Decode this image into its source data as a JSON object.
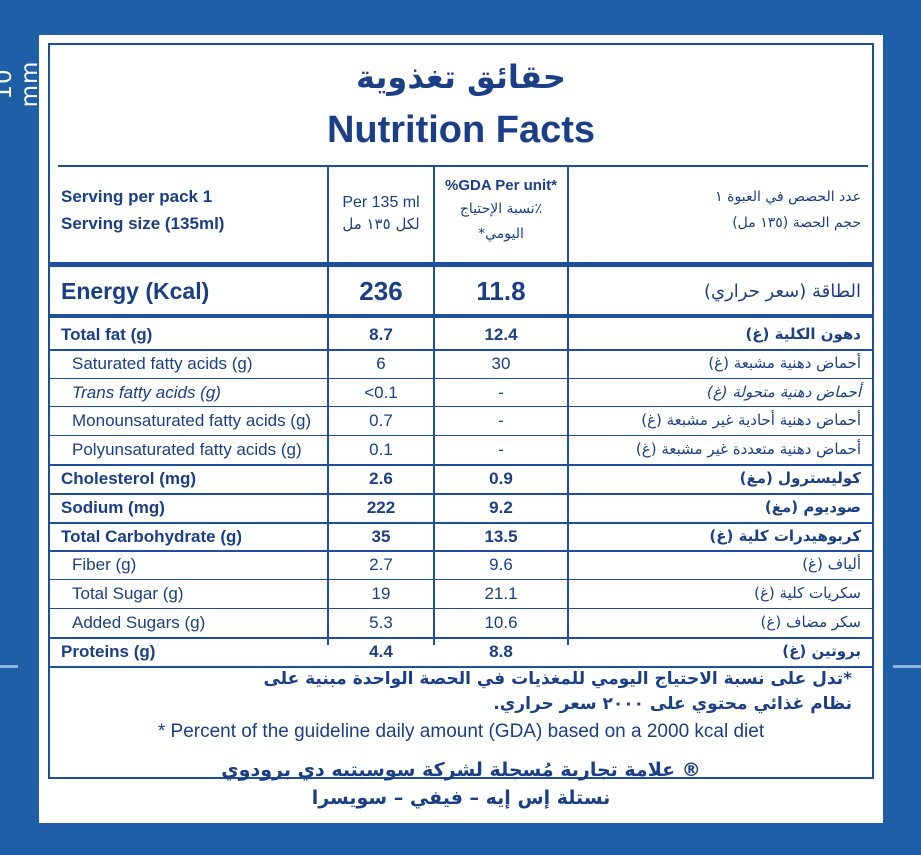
{
  "side_label": "10 mm",
  "title_ar": "حقائق تغذوية",
  "title_en": "Nutrition Facts",
  "header": {
    "serving_en_1": "Serving per pack 1",
    "serving_en_2": "Serving size (135ml)",
    "per_1": "Per 135 ml",
    "per_2": "لكل ١٣٥ مل",
    "gda_1": "%GDA Per unit*",
    "gda_2": "٪نسبة الإحتياج",
    "gda_3": "اليومي*",
    "serving_ar_1": "عدد الحصص في العبوة ١",
    "serving_ar_2": "حجم الحصة (١٣٥ مل)"
  },
  "energy": {
    "en": "Energy (Kcal)",
    "value": "236",
    "gda": "11.8",
    "ar": "الطاقة (سعر حراري)"
  },
  "rows": [
    {
      "en": "Total fat (g)",
      "value": "8.7",
      "gda": "12.4",
      "ar": "دهون الكلية (غ)",
      "bold": true,
      "indent": false,
      "italic": false
    },
    {
      "en": "Saturated fatty acids (g)",
      "value": "6",
      "gda": "30",
      "ar": "أحماض دهنية مشبعة (غ)",
      "bold": false,
      "indent": true,
      "italic": false
    },
    {
      "en": "Trans fatty acids (g)",
      "value": "<0.1",
      "gda": "-",
      "ar": "أحماض دهنية متحولة (غ)",
      "bold": false,
      "indent": true,
      "italic": true
    },
    {
      "en": "Monounsaturated fatty acids (g)",
      "value": "0.7",
      "gda": "-",
      "ar": "أحماض دهنية أحادية غير مشبعة (غ)",
      "bold": false,
      "indent": true,
      "italic": false
    },
    {
      "en": "Polyunsaturated fatty acids (g)",
      "value": "0.1",
      "gda": "-",
      "ar": "أحماض دهنية متعددة غير مشبعة (غ)",
      "bold": false,
      "indent": true,
      "italic": false
    },
    {
      "en": "Cholesterol (mg)",
      "value": "2.6",
      "gda": "0.9",
      "ar": "كوليسترول (مغ)",
      "bold": true,
      "indent": false,
      "italic": false
    },
    {
      "en": "Sodium (mg)",
      "value": "222",
      "gda": "9.2",
      "ar": "صوديوم (مغ)",
      "bold": true,
      "indent": false,
      "italic": false
    },
    {
      "en": "Total Carbohydrate (g)",
      "value": "35",
      "gda": "13.5",
      "ar": "كربوهيدرات كلية (غ)",
      "bold": true,
      "indent": false,
      "italic": false
    },
    {
      "en": "Fiber (g)",
      "value": "2.7",
      "gda": "9.6",
      "ar": "ألياف (غ)",
      "bold": false,
      "indent": true,
      "italic": false
    },
    {
      "en": "Total Sugar (g)",
      "value": "19",
      "gda": "21.1",
      "ar": "سكريات كلية (غ)",
      "bold": false,
      "indent": true,
      "italic": false
    },
    {
      "en": "Added Sugars (g)",
      "value": "5.3",
      "gda": "10.6",
      "ar": "سكر مضاف (غ)",
      "bold": false,
      "indent": true,
      "italic": false
    },
    {
      "en": "Proteins (g)",
      "value": "4.4",
      "gda": "8.8",
      "ar": "بروتين (غ)",
      "bold": true,
      "indent": false,
      "italic": false
    }
  ],
  "footnote_ar_1": "*تدل على نسبة الاحتياج اليومي للمغذيات في الحصة الواحدة مبنية على",
  "footnote_ar_2": "نظام غذائي محتوي على ٢٠٠٠ سعر حراري.",
  "footnote_en": "* Percent of the guideline daily amount (GDA) based on a 2000 kcal diet",
  "trademark_1": "® علامة تجارية مُسجلة لشركة سوسيتيه دي برودوي",
  "trademark_2": "نستلة إس إيه – فيفي – سويسرا",
  "colors": {
    "brand_blue": "#1e5fa8",
    "text_blue": "#1a3f86"
  }
}
